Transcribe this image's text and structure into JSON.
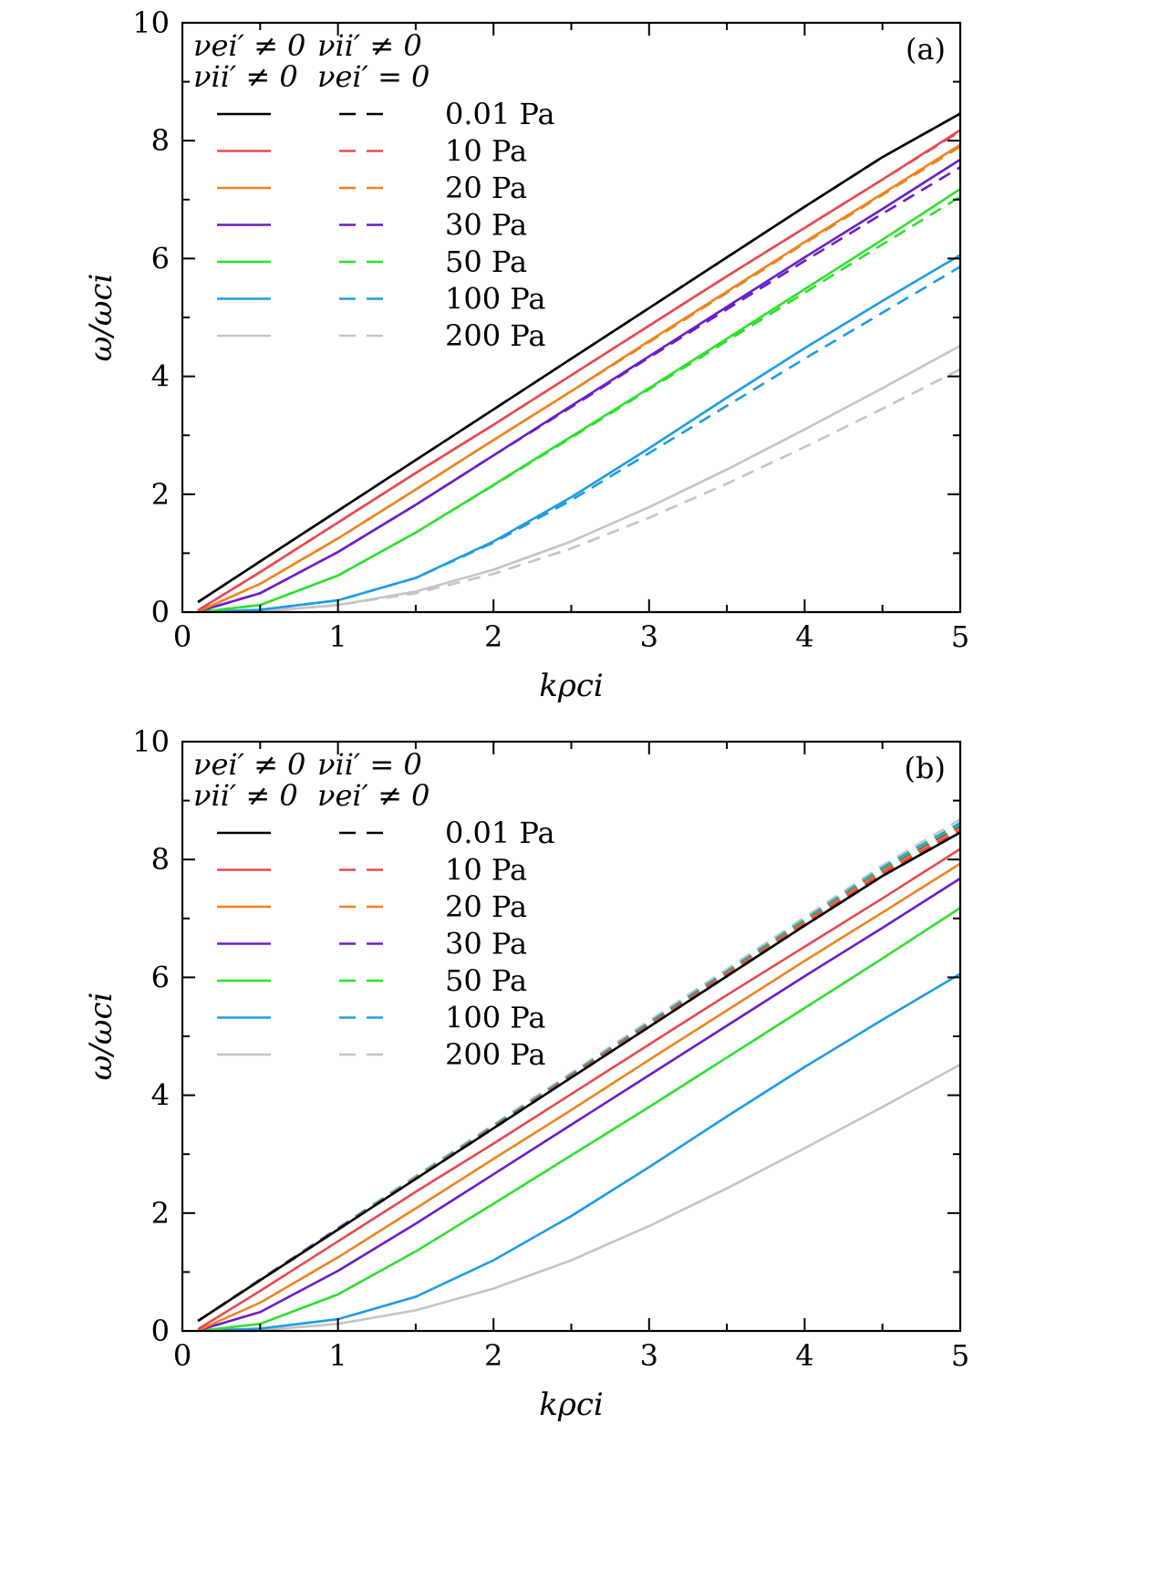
{
  "chart_data": [
    {
      "type": "line",
      "panel": "(a)",
      "xlabel": "kρci",
      "ylabel": "ω/ωci",
      "xlim": [
        0,
        5
      ],
      "ylim": [
        0,
        10
      ],
      "xticks": [
        "0",
        "1",
        "2",
        "3",
        "4",
        "5"
      ],
      "yticks": [
        "0",
        "2",
        "4",
        "6",
        "8",
        "10"
      ],
      "legend_headers": {
        "solid": [
          "νei′ ≠ 0",
          "νii′ ≠ 0"
        ],
        "dashed": [
          "νii′ ≠ 0",
          "νei′ = 0"
        ]
      },
      "legend_entries": [
        "0.01 Pa",
        "10 Pa",
        "20 Pa",
        "30 Pa",
        "50 Pa",
        "100 Pa",
        "200 Pa"
      ],
      "colors": [
        "#000000",
        "#e8484e",
        "#f0821e",
        "#6a1ec8",
        "#2ee02e",
        "#1e9be6",
        "#c4c4c4"
      ],
      "x": [
        0.1,
        0.5,
        1,
        1.5,
        2,
        2.5,
        3,
        3.5,
        4,
        4.5,
        5
      ],
      "series_solid": [
        {
          "name": "0.01 Pa",
          "values": [
            0.17,
            0.86,
            1.72,
            2.58,
            3.44,
            4.3,
            5.16,
            6.02,
            6.88,
            7.72,
            8.46
          ]
        },
        {
          "name": "10 Pa",
          "values": [
            0.03,
            0.68,
            1.52,
            2.36,
            3.18,
            4.02,
            4.86,
            5.7,
            6.52,
            7.34,
            8.18
          ]
        },
        {
          "name": "20 Pa",
          "values": [
            0.01,
            0.48,
            1.25,
            2.08,
            2.92,
            3.75,
            4.6,
            5.44,
            6.28,
            7.1,
            7.93
          ]
        },
        {
          "name": "30 Pa",
          "values": [
            0.01,
            0.32,
            1.02,
            1.82,
            2.66,
            3.5,
            4.34,
            5.18,
            6.02,
            6.84,
            7.68
          ]
        },
        {
          "name": "50 Pa",
          "values": [
            0.0,
            0.12,
            0.62,
            1.35,
            2.16,
            2.98,
            3.8,
            4.64,
            5.48,
            6.32,
            7.18
          ]
        },
        {
          "name": "100 Pa",
          "values": [
            0.0,
            0.04,
            0.2,
            0.58,
            1.2,
            1.95,
            2.78,
            3.64,
            4.48,
            5.28,
            6.06
          ]
        },
        {
          "name": "200 Pa",
          "values": [
            0.0,
            0.01,
            0.12,
            0.35,
            0.72,
            1.2,
            1.78,
            2.42,
            3.1,
            3.8,
            4.52
          ]
        }
      ],
      "series_dashed": [
        {
          "name": "0.01 Pa",
          "values": [
            0.17,
            0.86,
            1.72,
            2.58,
            3.44,
            4.3,
            5.16,
            6.02,
            6.88,
            7.72,
            8.46
          ]
        },
        {
          "name": "10 Pa",
          "values": [
            0.03,
            0.68,
            1.52,
            2.36,
            3.18,
            4.02,
            4.86,
            5.7,
            6.52,
            7.34,
            8.16
          ]
        },
        {
          "name": "20 Pa",
          "values": [
            0.01,
            0.48,
            1.25,
            2.08,
            2.92,
            3.75,
            4.58,
            5.42,
            6.26,
            7.08,
            7.9
          ]
        },
        {
          "name": "30 Pa",
          "values": [
            0.01,
            0.32,
            1.02,
            1.82,
            2.66,
            3.48,
            4.32,
            5.14,
            5.96,
            6.76,
            7.55
          ]
        },
        {
          "name": "50 Pa",
          "values": [
            0.0,
            0.12,
            0.62,
            1.35,
            2.15,
            2.96,
            3.78,
            4.6,
            5.42,
            6.24,
            7.05
          ]
        },
        {
          "name": "100 Pa",
          "values": [
            0.0,
            0.04,
            0.2,
            0.58,
            1.18,
            1.9,
            2.7,
            3.5,
            4.3,
            5.08,
            5.86
          ]
        },
        {
          "name": "200 Pa",
          "values": [
            0.0,
            0.01,
            0.12,
            0.32,
            0.65,
            1.08,
            1.6,
            2.18,
            2.8,
            3.45,
            4.12
          ]
        }
      ]
    },
    {
      "type": "line",
      "panel": "(b)",
      "xlabel": "kρci",
      "ylabel": "ω/ωci",
      "xlim": [
        0,
        5
      ],
      "ylim": [
        0,
        10
      ],
      "xticks": [
        "0",
        "1",
        "2",
        "3",
        "4",
        "5"
      ],
      "yticks": [
        "0",
        "2",
        "4",
        "6",
        "8",
        "10"
      ],
      "legend_headers": {
        "solid": [
          "νei′ ≠ 0",
          "νii′ ≠ 0"
        ],
        "dashed": [
          "νii′ = 0",
          "νei′ ≠ 0"
        ]
      },
      "legend_entries": [
        "0.01 Pa",
        "10 Pa",
        "20 Pa",
        "30 Pa",
        "50 Pa",
        "100 Pa",
        "200 Pa"
      ],
      "colors": [
        "#000000",
        "#e8484e",
        "#f0821e",
        "#6a1ec8",
        "#2ee02e",
        "#1e9be6",
        "#c4c4c4"
      ],
      "x": [
        0.1,
        0.5,
        1,
        1.5,
        2,
        2.5,
        3,
        3.5,
        4,
        4.5,
        5
      ],
      "series_solid": [
        {
          "name": "0.01 Pa",
          "values": [
            0.17,
            0.86,
            1.72,
            2.58,
            3.44,
            4.3,
            5.16,
            6.02,
            6.88,
            7.72,
            8.46
          ]
        },
        {
          "name": "10 Pa",
          "values": [
            0.03,
            0.68,
            1.52,
            2.36,
            3.18,
            4.02,
            4.86,
            5.7,
            6.52,
            7.34,
            8.18
          ]
        },
        {
          "name": "20 Pa",
          "values": [
            0.01,
            0.48,
            1.25,
            2.08,
            2.92,
            3.75,
            4.6,
            5.44,
            6.28,
            7.1,
            7.93
          ]
        },
        {
          "name": "30 Pa",
          "values": [
            0.01,
            0.32,
            1.02,
            1.82,
            2.66,
            3.5,
            4.34,
            5.18,
            6.02,
            6.84,
            7.68
          ]
        },
        {
          "name": "50 Pa",
          "values": [
            0.0,
            0.12,
            0.62,
            1.35,
            2.16,
            2.98,
            3.8,
            4.64,
            5.48,
            6.32,
            7.18
          ]
        },
        {
          "name": "100 Pa",
          "values": [
            0.0,
            0.04,
            0.2,
            0.58,
            1.2,
            1.95,
            2.78,
            3.64,
            4.48,
            5.28,
            6.06
          ]
        },
        {
          "name": "200 Pa",
          "values": [
            0.0,
            0.01,
            0.12,
            0.35,
            0.72,
            1.2,
            1.78,
            2.42,
            3.1,
            3.8,
            4.52
          ]
        }
      ],
      "series_dashed": [
        {
          "name": "0.01 Pa",
          "values": [
            0.17,
            0.86,
            1.72,
            2.58,
            3.44,
            4.3,
            5.16,
            6.02,
            6.88,
            7.72,
            8.46
          ]
        },
        {
          "name": "10 Pa",
          "values": [
            0.17,
            0.86,
            1.72,
            2.58,
            3.45,
            4.31,
            5.18,
            6.04,
            6.91,
            7.77,
            8.5
          ]
        },
        {
          "name": "20 Pa",
          "values": [
            0.17,
            0.86,
            1.72,
            2.59,
            3.45,
            4.32,
            5.19,
            6.06,
            6.93,
            7.8,
            8.53
          ]
        },
        {
          "name": "30 Pa",
          "values": [
            0.17,
            0.87,
            1.73,
            2.59,
            3.46,
            4.33,
            5.2,
            6.07,
            6.94,
            7.81,
            8.55
          ]
        },
        {
          "name": "50 Pa",
          "values": [
            0.17,
            0.87,
            1.73,
            2.6,
            3.47,
            4.34,
            5.21,
            6.08,
            6.96,
            7.83,
            8.58
          ]
        },
        {
          "name": "100 Pa",
          "values": [
            0.17,
            0.87,
            1.74,
            2.61,
            3.48,
            4.35,
            5.23,
            6.1,
            6.98,
            7.86,
            8.62
          ]
        },
        {
          "name": "200 Pa",
          "values": [
            0.17,
            0.88,
            1.75,
            2.63,
            3.5,
            4.38,
            5.26,
            6.14,
            7.02,
            7.9,
            8.68
          ]
        }
      ]
    }
  ]
}
